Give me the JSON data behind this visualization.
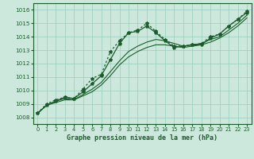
{
  "bg_color": "#cce8dc",
  "grid_color": "#99ccbb",
  "line_color": "#1a5c2a",
  "xlabel": "Graphe pression niveau de la mer (hPa)",
  "ylim": [
    1007.5,
    1016.5
  ],
  "xlim": [
    -0.5,
    23.5
  ],
  "yticks": [
    1008,
    1009,
    1010,
    1011,
    1012,
    1013,
    1014,
    1015,
    1016
  ],
  "xticks": [
    0,
    1,
    2,
    3,
    4,
    5,
    6,
    7,
    8,
    9,
    10,
    11,
    12,
    13,
    14,
    15,
    16,
    17,
    18,
    19,
    20,
    21,
    22,
    23
  ],
  "series_dotted_x": [
    0,
    1,
    2,
    3,
    4,
    5,
    6,
    7,
    8,
    9,
    10,
    11,
    12,
    13,
    14,
    15,
    16,
    17,
    18,
    19,
    20,
    21,
    22,
    23
  ],
  "series_dotted_y": [
    1008.3,
    1009.0,
    1009.3,
    1009.5,
    1009.4,
    1010.1,
    1010.9,
    1011.2,
    1012.9,
    1013.7,
    1014.3,
    1014.5,
    1015.0,
    1014.4,
    1013.8,
    1013.3,
    1013.3,
    1013.4,
    1013.5,
    1014.0,
    1014.2,
    1014.8,
    1015.3,
    1015.9
  ],
  "series_solid1_x": [
    0,
    1,
    2,
    3,
    4,
    5,
    6,
    7,
    8,
    9,
    10,
    11,
    12,
    13,
    14,
    15,
    16,
    17,
    18,
    19,
    20,
    21,
    22,
    23
  ],
  "series_solid1_y": [
    1008.3,
    1008.9,
    1009.2,
    1009.4,
    1009.3,
    1009.7,
    1010.1,
    1010.6,
    1011.4,
    1012.2,
    1012.9,
    1013.3,
    1013.6,
    1013.8,
    1013.7,
    1013.5,
    1013.3,
    1013.4,
    1013.5,
    1013.8,
    1014.0,
    1014.5,
    1015.0,
    1015.6
  ],
  "series_solid2_x": [
    0,
    1,
    2,
    3,
    4,
    5,
    6,
    7,
    8,
    9,
    10,
    11,
    12,
    13,
    14,
    15,
    16,
    17,
    18,
    19,
    20,
    21,
    22,
    23
  ],
  "series_solid2_y": [
    1008.3,
    1008.9,
    1009.1,
    1009.3,
    1009.3,
    1009.6,
    1009.9,
    1010.4,
    1011.1,
    1011.9,
    1012.5,
    1012.9,
    1013.2,
    1013.4,
    1013.4,
    1013.3,
    1013.2,
    1013.3,
    1013.4,
    1013.6,
    1013.9,
    1014.3,
    1014.8,
    1015.4
  ],
  "series_markers_x": [
    0,
    1,
    2,
    3,
    4,
    5,
    6,
    7,
    8,
    9,
    10,
    11,
    12,
    13,
    14,
    15,
    16,
    17,
    18,
    19,
    20,
    21,
    22,
    23
  ],
  "series_markers_y": [
    1008.3,
    1008.9,
    1009.2,
    1009.5,
    1009.4,
    1009.9,
    1010.5,
    1011.1,
    1012.3,
    1013.5,
    1014.3,
    1014.4,
    1014.8,
    1014.3,
    1013.7,
    1013.2,
    1013.3,
    1013.4,
    1013.4,
    1013.9,
    1014.2,
    1014.8,
    1015.3,
    1015.8
  ]
}
